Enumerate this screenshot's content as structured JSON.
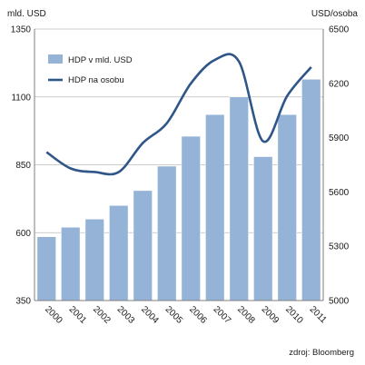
{
  "chart_data": {
    "type": "bar",
    "left_axis_unit": "mld. USD",
    "right_axis_unit": "USD/osoba",
    "source_note": "zdroj: Bloomberg",
    "categories": [
      "2000",
      "2001",
      "2002",
      "2003",
      "2004",
      "2005",
      "2006",
      "2007",
      "2008",
      "2009",
      "2010",
      "2011"
    ],
    "y_left": {
      "min": 350,
      "max": 1350,
      "ticks": [
        "350",
        "600",
        "850",
        "1100",
        "1350"
      ]
    },
    "y_right": {
      "min": 5000,
      "max": 6500,
      "ticks": [
        "5000",
        "5300",
        "5600",
        "5900",
        "6200",
        "6500"
      ]
    },
    "grid": true,
    "legend_position": "top-left",
    "series": [
      {
        "name": "HDP v mld. USD",
        "type": "bar",
        "axis": "left",
        "color": "#95b3d7",
        "values": [
          585,
          620,
          650,
          700,
          755,
          845,
          955,
          1035,
          1100,
          880,
          1035,
          1165
        ]
      },
      {
        "name": "HDP na osobu",
        "type": "line",
        "axis": "right",
        "color": "#2f5688",
        "values": [
          5820,
          5730,
          5710,
          5710,
          5870,
          5980,
          6200,
          6330,
          6320,
          5880,
          6130,
          6290
        ]
      }
    ]
  }
}
